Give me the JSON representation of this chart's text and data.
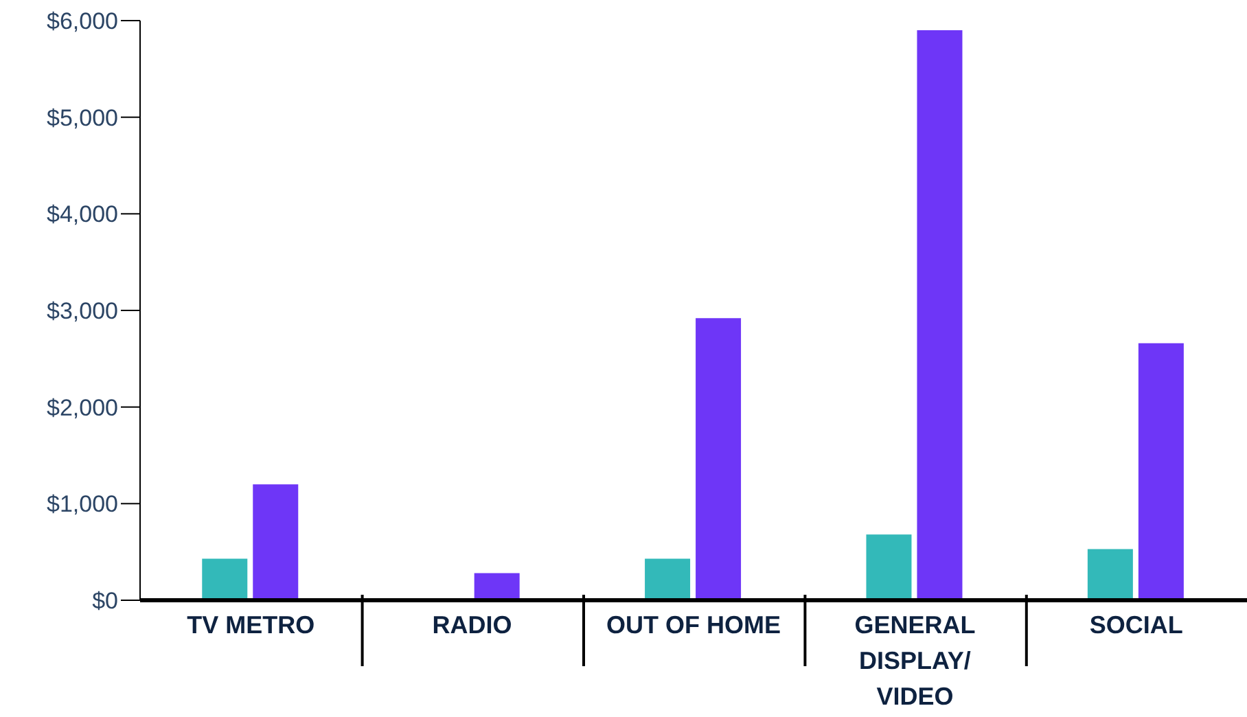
{
  "chart_data": {
    "type": "bar",
    "categories": [
      "TV METRO",
      "RADIO",
      "OUT OF HOME",
      "GENERAL DISPLAY/ VIDEO",
      "SOCIAL"
    ],
    "series": [
      {
        "color": "#33b9b9",
        "values": [
          430,
          0,
          430,
          680,
          530
        ]
      },
      {
        "color": "#6e36f7",
        "values": [
          1200,
          280,
          2920,
          5900,
          2660
        ]
      }
    ],
    "ylim": [
      0,
      6000
    ],
    "yticks": [
      {
        "value": 0,
        "label": "$0"
      },
      {
        "value": 1000,
        "label": "$1,000"
      },
      {
        "value": 2000,
        "label": "$2,000"
      },
      {
        "value": 3000,
        "label": "$3,000"
      },
      {
        "value": 4000,
        "label": "$4,000"
      },
      {
        "value": 5000,
        "label": "$5,000"
      },
      {
        "value": 6000,
        "label": "$6,000"
      }
    ],
    "grid": false,
    "legend": false
  }
}
